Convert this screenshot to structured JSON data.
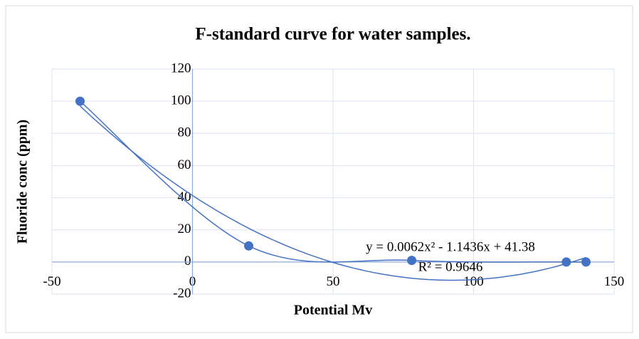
{
  "chart_data": {
    "type": "scatter",
    "title": "F-standard curve for water samples.",
    "xlabel": "Potential Mv",
    "ylabel": "Fluoride conc (ppm)",
    "x": [
      -40,
      20,
      78,
      133,
      140
    ],
    "values": [
      100,
      10,
      1,
      0,
      0
    ],
    "color": "#4472c4",
    "smooth_line": true,
    "trendline": {
      "equation": "y = 0.0062x² - 1.1436x + 41.38",
      "r2": "R² = 0.9646"
    },
    "xlim": [
      -50,
      150
    ],
    "xticks": [
      -50,
      0,
      50,
      100,
      150
    ],
    "ylim": [
      -20,
      120
    ],
    "yticks": [
      -20,
      0,
      20,
      40,
      60,
      80,
      100,
      120
    ],
    "grid": true
  }
}
